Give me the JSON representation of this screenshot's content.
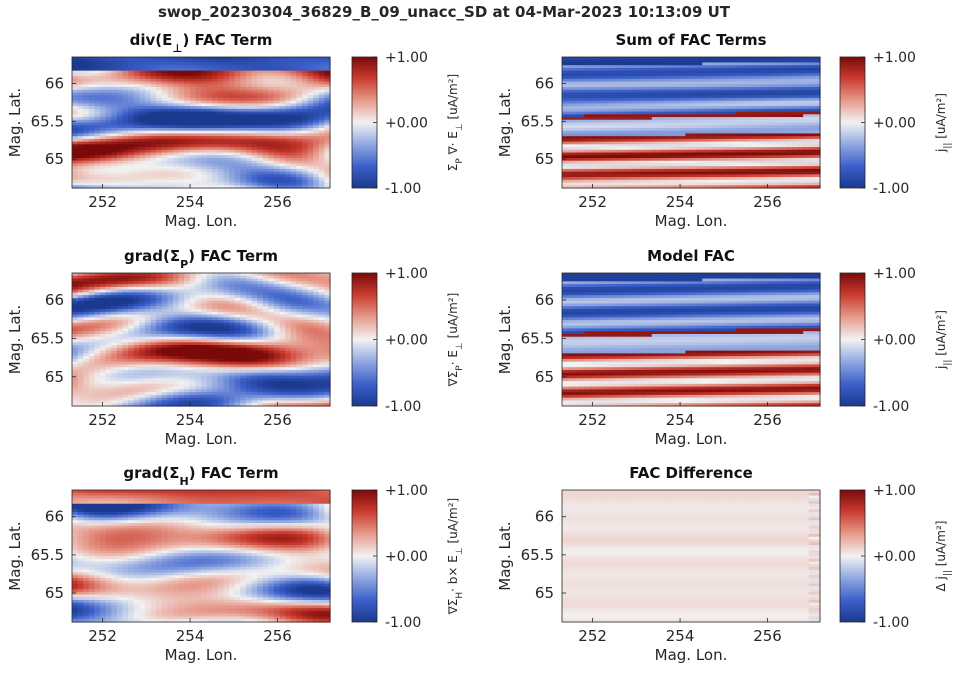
{
  "figure": {
    "suptitle": "swop_20230304_36829_B_09_unacc_SD at 04-Mar-2023 10:13:09 UT"
  },
  "colors": {
    "cmap": [
      "#1b3a8f",
      "#3a5ec9",
      "#8fa6e0",
      "#f2f2f2",
      "#e6998a",
      "#c93a2e",
      "#7a0a0a"
    ],
    "text": "#262626"
  },
  "chart_data": [
    {
      "type": "heatmap",
      "title_main": "div(E",
      "title_sub": "⊥",
      "title_end": ") FAC Term",
      "xlabel": "Mag. Lon.",
      "ylabel": "Mag. Lat.",
      "xlim": [
        251.3,
        257.2
      ],
      "ylim": [
        64.62,
        66.35
      ],
      "xticks": [
        "252",
        "254",
        "256"
      ],
      "xtick_values": [
        252,
        254,
        256
      ],
      "yticks": [
        "65",
        "65.5",
        "66"
      ],
      "ytick_values": [
        65,
        65.5,
        66
      ],
      "clim": [
        -1,
        1
      ],
      "cbar_ticks": [
        "-1.00",
        "+0.00",
        "+1.00"
      ],
      "cbar_label_main": "Σ",
      "cbar_label_sub": "P",
      "cbar_label_end": " ∇· E",
      "cbar_label_sub2": "⊥",
      "cbar_label_units": " [uA/m²]",
      "pattern": "noisy",
      "amplitude": 1.1,
      "seed": 11,
      "top_band": -0.9
    },
    {
      "type": "heatmap",
      "title_main": "Sum of FAC Terms",
      "title_sub": "",
      "title_end": "",
      "xlabel": "Mag. Lon.",
      "ylabel": "Mag. Lat.",
      "xlim": [
        251.3,
        257.2
      ],
      "ylim": [
        64.62,
        66.35
      ],
      "xticks": [
        "252",
        "254",
        "256"
      ],
      "xtick_values": [
        252,
        254,
        256
      ],
      "yticks": [
        "65",
        "65.5",
        "66"
      ],
      "ytick_values": [
        65,
        65.5,
        66
      ],
      "clim": [
        -1,
        1
      ],
      "cbar_ticks": [
        "-1.00",
        "+0.00",
        "+1.00"
      ],
      "cbar_label_main": "j",
      "cbar_label_sub": "||",
      "cbar_label_end": "",
      "cbar_label_sub2": "",
      "cbar_label_units": " [uA/m²]",
      "pattern": "bands",
      "amplitude": 1.0,
      "seed": 21,
      "noise": 0.12
    },
    {
      "type": "heatmap",
      "title_main": "grad(Σ",
      "title_sub": "P",
      "title_end": ") FAC Term",
      "xlabel": "Mag. Lon.",
      "ylabel": "Mag. Lat.",
      "xlim": [
        251.3,
        257.2
      ],
      "ylim": [
        64.62,
        66.35
      ],
      "xticks": [
        "252",
        "254",
        "256"
      ],
      "xtick_values": [
        252,
        254,
        256
      ],
      "yticks": [
        "65",
        "65.5",
        "66"
      ],
      "ytick_values": [
        65,
        65.5,
        66
      ],
      "clim": [
        -1,
        1
      ],
      "cbar_ticks": [
        "-1.00",
        "+0.00",
        "+1.00"
      ],
      "cbar_label_main": "∇Σ",
      "cbar_label_sub": "P",
      "cbar_label_end": "· E",
      "cbar_label_sub2": "⊥",
      "cbar_label_units": " [uA/m²]",
      "pattern": "noisy",
      "amplitude": 1.0,
      "seed": 33,
      "top_band": 0
    },
    {
      "type": "heatmap",
      "title_main": "Model FAC",
      "title_sub": "",
      "title_end": "",
      "xlabel": "Mag. Lon.",
      "ylabel": "Mag. Lat.",
      "xlim": [
        251.3,
        257.2
      ],
      "ylim": [
        64.62,
        66.35
      ],
      "xticks": [
        "252",
        "254",
        "256"
      ],
      "xtick_values": [
        252,
        254,
        256
      ],
      "yticks": [
        "65",
        "65.5",
        "66"
      ],
      "ytick_values": [
        65,
        65.5,
        66
      ],
      "clim": [
        -1,
        1
      ],
      "cbar_ticks": [
        "-1.00",
        "+0.00",
        "+1.00"
      ],
      "cbar_label_main": "j",
      "cbar_label_sub": "||",
      "cbar_label_end": "",
      "cbar_label_sub2": "",
      "cbar_label_units": " [uA/m²]",
      "pattern": "bands",
      "amplitude": 1.0,
      "seed": 41,
      "noise": 0.0
    },
    {
      "type": "heatmap",
      "title_main": "grad(Σ",
      "title_sub": "H",
      "title_end": ") FAC Term",
      "xlabel": "Mag. Lon.",
      "ylabel": "Mag. Lat.",
      "xlim": [
        251.3,
        257.2
      ],
      "ylim": [
        64.62,
        66.35
      ],
      "xticks": [
        "252",
        "254",
        "256"
      ],
      "xtick_values": [
        252,
        254,
        256
      ],
      "yticks": [
        "65",
        "65.5",
        "66"
      ],
      "ytick_values": [
        65,
        65.5,
        66
      ],
      "clim": [
        -1,
        1
      ],
      "cbar_ticks": [
        "-1.00",
        "+0.00",
        "+1.00"
      ],
      "cbar_label_main": "∇Σ",
      "cbar_label_sub": "H",
      "cbar_label_end": "· b× E",
      "cbar_label_sub2": "⊥",
      "cbar_label_units": " [uA/m²]",
      "pattern": "noisy",
      "amplitude": 0.75,
      "seed": 55,
      "top_band": 0.6
    },
    {
      "type": "heatmap",
      "title_main": "FAC Difference",
      "title_sub": "",
      "title_end": "",
      "xlabel": "Mag. Lon.",
      "ylabel": "Mag. Lat.",
      "xlim": [
        251.3,
        257.2
      ],
      "ylim": [
        64.62,
        66.35
      ],
      "xticks": [
        "252",
        "254",
        "256"
      ],
      "xtick_values": [
        252,
        254,
        256
      ],
      "yticks": [
        "65",
        "65.5",
        "66"
      ],
      "ytick_values": [
        65,
        65.5,
        66
      ],
      "clim": [
        -1,
        1
      ],
      "cbar_ticks": [
        "-1.00",
        "+0.00",
        "+1.00"
      ],
      "cbar_label_main": "Δ j",
      "cbar_label_sub": "||",
      "cbar_label_end": "",
      "cbar_label_sub2": "",
      "cbar_label_units": " [uA/m²]",
      "pattern": "flat",
      "amplitude": 0.08,
      "seed": 61
    }
  ]
}
